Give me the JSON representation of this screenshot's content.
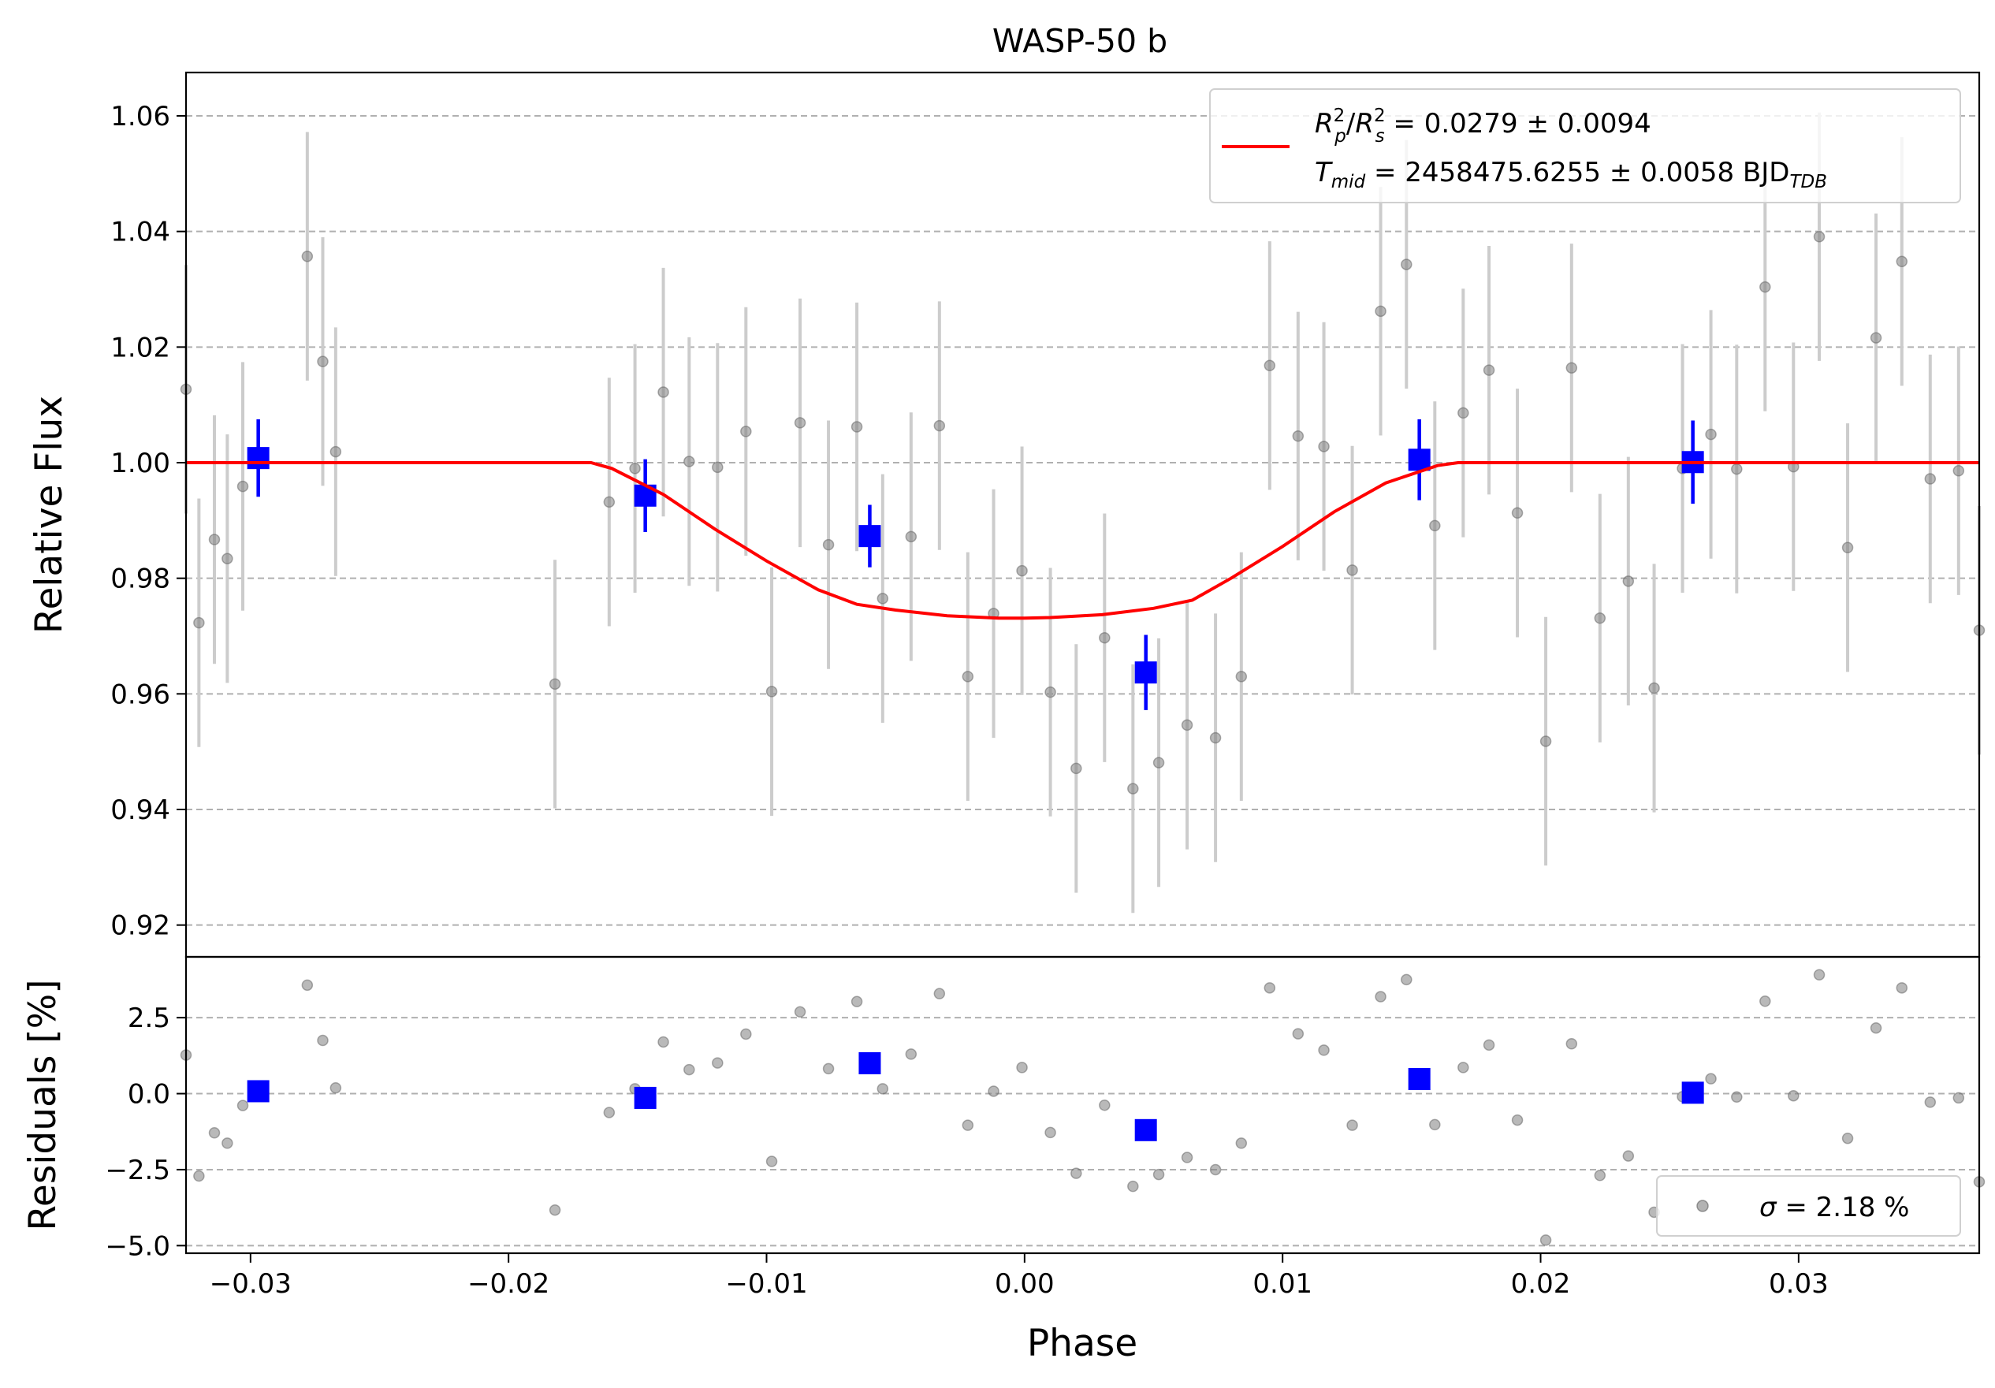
{
  "chart_data": [
    {
      "panel": "top",
      "type": "scatter",
      "title": "WASP-50 b",
      "xlabel": "",
      "ylabel": "Relative Flux",
      "xlim": [
        -0.0325,
        0.037
      ],
      "ylim": [
        0.9145,
        1.0675
      ],
      "yticks": [
        "0.92",
        "0.94",
        "0.96",
        "0.98",
        "1.00",
        "1.02",
        "1.04",
        "1.06"
      ],
      "grid": "horizontal dashed",
      "legend_position": "upper right",
      "legend": {
        "model_label": "R_p^2/R_s^2 = 0.0279 ± 0.0094",
        "model_label_parts": {
          "r": "R",
          "p": "p",
          "s": "s",
          "sq": "2",
          "div": "/",
          "value": " = 0.0279 ± 0.0094"
        },
        "tmid_parts": {
          "t": "T",
          "sub": "mid",
          "value": " = 2458475.6255 ± 0.0058 BJD",
          "tdb": "TDB"
        }
      },
      "colors": {
        "data": "#808080",
        "errorbar": "#cccccc",
        "binned": "#0000ff",
        "model": "#ff0000"
      },
      "model": {
        "name": "transit model",
        "depth_min": 0.9731,
        "x": [
          -0.0325,
          -0.0168,
          -0.016,
          -0.014,
          -0.012,
          -0.01,
          -0.008,
          -0.0065,
          -0.005,
          -0.003,
          -0.001,
          0.0,
          0.001,
          0.003,
          0.005,
          0.0065,
          0.008,
          0.01,
          0.012,
          0.014,
          0.016,
          0.0168,
          0.037
        ],
        "y": [
          1.0,
          1.0,
          0.999,
          0.9945,
          0.9885,
          0.983,
          0.978,
          0.9755,
          0.9745,
          0.9735,
          0.9731,
          0.9731,
          0.9732,
          0.9737,
          0.9748,
          0.9762,
          0.98,
          0.9855,
          0.9915,
          0.9965,
          0.9995,
          1.0,
          1.0
        ]
      },
      "data_points": [
        {
          "x": -0.0325,
          "y": 1.0127,
          "err": 0.0215
        },
        {
          "x": -0.032,
          "y": 0.9723,
          "err": 0.0215
        },
        {
          "x": -0.0314,
          "y": 0.9867,
          "err": 0.0215
        },
        {
          "x": -0.0309,
          "y": 0.9834,
          "err": 0.0215
        },
        {
          "x": -0.0303,
          "y": 0.9959,
          "err": 0.0215
        },
        {
          "x": -0.0278,
          "y": 1.0357,
          "err": 0.0215
        },
        {
          "x": -0.0272,
          "y": 1.0175,
          "err": 0.0215
        },
        {
          "x": -0.0267,
          "y": 1.0019,
          "err": 0.0215
        },
        {
          "x": -0.0182,
          "y": 0.9617,
          "err": 0.0215
        },
        {
          "x": -0.0161,
          "y": 0.9932,
          "err": 0.0215
        },
        {
          "x": -0.0151,
          "y": 0.999,
          "err": 0.0215
        },
        {
          "x": -0.014,
          "y": 1.0122,
          "err": 0.0215
        },
        {
          "x": -0.013,
          "y": 1.0002,
          "err": 0.0215
        },
        {
          "x": -0.0119,
          "y": 0.9992,
          "err": 0.0215
        },
        {
          "x": -0.0108,
          "y": 1.0054,
          "err": 0.0215
        },
        {
          "x": -0.0098,
          "y": 0.9604,
          "err": 0.0215
        },
        {
          "x": -0.0087,
          "y": 1.0069,
          "err": 0.0215
        },
        {
          "x": -0.0076,
          "y": 0.9858,
          "err": 0.0215
        },
        {
          "x": -0.0065,
          "y": 1.0062,
          "err": 0.0215
        },
        {
          "x": -0.0055,
          "y": 0.9765,
          "err": 0.0215
        },
        {
          "x": -0.0044,
          "y": 0.9872,
          "err": 0.0215
        },
        {
          "x": -0.0033,
          "y": 1.0064,
          "err": 0.0215
        },
        {
          "x": -0.0022,
          "y": 0.963,
          "err": 0.0215
        },
        {
          "x": -0.0012,
          "y": 0.9739,
          "err": 0.0215
        },
        {
          "x": -0.0001,
          "y": 0.9813,
          "err": 0.0215
        },
        {
          "x": 0.001,
          "y": 0.9603,
          "err": 0.0215
        },
        {
          "x": 0.002,
          "y": 0.9471,
          "err": 0.0215
        },
        {
          "x": 0.0031,
          "y": 0.9697,
          "err": 0.0215
        },
        {
          "x": 0.0042,
          "y": 0.9436,
          "err": 0.0215
        },
        {
          "x": 0.0052,
          "y": 0.9481,
          "err": 0.0215
        },
        {
          "x": 0.0063,
          "y": 0.9546,
          "err": 0.0215
        },
        {
          "x": 0.0074,
          "y": 0.9524,
          "err": 0.0215
        },
        {
          "x": 0.0084,
          "y": 0.963,
          "err": 0.0215
        },
        {
          "x": 0.0095,
          "y": 1.0168,
          "err": 0.0215
        },
        {
          "x": 0.0106,
          "y": 1.0046,
          "err": 0.0215
        },
        {
          "x": 0.0116,
          "y": 1.0028,
          "err": 0.0215
        },
        {
          "x": 0.0127,
          "y": 0.9814,
          "err": 0.0215
        },
        {
          "x": 0.0138,
          "y": 1.0262,
          "err": 0.0215
        },
        {
          "x": 0.0148,
          "y": 1.0343,
          "err": 0.0215
        },
        {
          "x": 0.0159,
          "y": 0.9891,
          "err": 0.0215
        },
        {
          "x": 0.017,
          "y": 1.0086,
          "err": 0.0215
        },
        {
          "x": 0.018,
          "y": 1.016,
          "err": 0.0215
        },
        {
          "x": 0.0191,
          "y": 0.9913,
          "err": 0.0215
        },
        {
          "x": 0.0202,
          "y": 0.9518,
          "err": 0.0215
        },
        {
          "x": 0.0212,
          "y": 1.0164,
          "err": 0.0215
        },
        {
          "x": 0.0223,
          "y": 0.9731,
          "err": 0.0215
        },
        {
          "x": 0.0234,
          "y": 0.9795,
          "err": 0.0215
        },
        {
          "x": 0.0244,
          "y": 0.961,
          "err": 0.0215
        },
        {
          "x": 0.0255,
          "y": 0.999,
          "err": 0.0215
        },
        {
          "x": 0.0266,
          "y": 1.0049,
          "err": 0.0215
        },
        {
          "x": 0.0276,
          "y": 0.9989,
          "err": 0.0215
        },
        {
          "x": 0.0287,
          "y": 1.0304,
          "err": 0.0215
        },
        {
          "x": 0.0298,
          "y": 0.9993,
          "err": 0.0215
        },
        {
          "x": 0.0308,
          "y": 1.0391,
          "err": 0.0215
        },
        {
          "x": 0.0319,
          "y": 0.9853,
          "err": 0.0215
        },
        {
          "x": 0.033,
          "y": 1.0216,
          "err": 0.0215
        },
        {
          "x": 0.034,
          "y": 1.0348,
          "err": 0.0215
        },
        {
          "x": 0.0351,
          "y": 0.9972,
          "err": 0.0215
        },
        {
          "x": 0.0362,
          "y": 0.9986,
          "err": 0.0215
        },
        {
          "x": 0.037,
          "y": 0.971,
          "err": 0.0215
        }
      ],
      "binned_points": [
        {
          "x": -0.0297,
          "y": 1.0008,
          "err": 0.0067
        },
        {
          "x": -0.0147,
          "y": 0.9943,
          "err": 0.0063
        },
        {
          "x": -0.006,
          "y": 0.9873,
          "err": 0.0054
        },
        {
          "x": 0.0047,
          "y": 0.9637,
          "err": 0.0065
        },
        {
          "x": 0.0153,
          "y": 1.0005,
          "err": 0.007
        },
        {
          "x": 0.0259,
          "y": 1.0001,
          "err": 0.0072
        }
      ]
    },
    {
      "panel": "bottom",
      "type": "scatter",
      "xlabel": "Phase",
      "ylabel": "Residuals [%]",
      "xlim": [
        -0.0325,
        0.037
      ],
      "ylim": [
        -5.25,
        4.5
      ],
      "xticks": [
        "−0.03",
        "−0.02",
        "−0.01",
        "0.00",
        "0.01",
        "0.02",
        "0.03"
      ],
      "xtick_values": [
        -0.03,
        -0.02,
        -0.01,
        0.0,
        0.01,
        0.02,
        0.03
      ],
      "yticks": [
        "−5.0",
        "−2.5",
        "0.0",
        "2.5"
      ],
      "ytick_values": [
        -5.0,
        -2.5,
        0.0,
        2.5
      ],
      "grid": "horizontal dashed",
      "legend_position": "lower right",
      "legend": {
        "sigma_label": "σ = 2.18 %",
        "sigma_symbol": "σ",
        "sigma_value": " = 2.18 %"
      },
      "residual_points": [
        {
          "x": -0.0325,
          "y": 1.27
        },
        {
          "x": -0.032,
          "y": -2.71
        },
        {
          "x": -0.0314,
          "y": -1.29
        },
        {
          "x": -0.0309,
          "y": -1.63
        },
        {
          "x": -0.0303,
          "y": -0.39
        },
        {
          "x": -0.0278,
          "y": 3.57
        },
        {
          "x": -0.0272,
          "y": 1.75
        },
        {
          "x": -0.0267,
          "y": 0.19
        },
        {
          "x": -0.0182,
          "y": -3.83
        },
        {
          "x": -0.0161,
          "y": -0.62
        },
        {
          "x": -0.0151,
          "y": 0.16
        },
        {
          "x": -0.014,
          "y": 1.7
        },
        {
          "x": -0.013,
          "y": 0.79
        },
        {
          "x": -0.0119,
          "y": 1.01
        },
        {
          "x": -0.0108,
          "y": 1.96
        },
        {
          "x": -0.0098,
          "y": -2.23
        },
        {
          "x": -0.0087,
          "y": 2.69
        },
        {
          "x": -0.0076,
          "y": 0.82
        },
        {
          "x": -0.0065,
          "y": 3.03
        },
        {
          "x": -0.0055,
          "y": 0.16
        },
        {
          "x": -0.0044,
          "y": 1.3
        },
        {
          "x": -0.0033,
          "y": 3.29
        },
        {
          "x": -0.0022,
          "y": -1.04
        },
        {
          "x": -0.0012,
          "y": 0.08
        },
        {
          "x": -0.0001,
          "y": 0.86
        },
        {
          "x": 0.001,
          "y": -1.28
        },
        {
          "x": 0.002,
          "y": -2.62
        },
        {
          "x": 0.0031,
          "y": -0.38
        },
        {
          "x": 0.0042,
          "y": -3.05
        },
        {
          "x": 0.0052,
          "y": -2.66
        },
        {
          "x": 0.0063,
          "y": -2.1
        },
        {
          "x": 0.0074,
          "y": -2.5
        },
        {
          "x": 0.0084,
          "y": -1.63
        },
        {
          "x": 0.0095,
          "y": 3.48
        },
        {
          "x": 0.0106,
          "y": 1.97
        },
        {
          "x": 0.0116,
          "y": 1.43
        },
        {
          "x": 0.0127,
          "y": -1.04
        },
        {
          "x": 0.0138,
          "y": 3.19
        },
        {
          "x": 0.0148,
          "y": 3.75
        },
        {
          "x": 0.0159,
          "y": -1.02
        },
        {
          "x": 0.017,
          "y": 0.86
        },
        {
          "x": 0.018,
          "y": 1.6
        },
        {
          "x": 0.0191,
          "y": -0.87
        },
        {
          "x": 0.0202,
          "y": -4.82
        },
        {
          "x": 0.0212,
          "y": 1.64
        },
        {
          "x": 0.0223,
          "y": -2.69
        },
        {
          "x": 0.0234,
          "y": -2.05
        },
        {
          "x": 0.0244,
          "y": -3.9
        },
        {
          "x": 0.0255,
          "y": -0.1
        },
        {
          "x": 0.0266,
          "y": 0.49
        },
        {
          "x": 0.0276,
          "y": -0.11
        },
        {
          "x": 0.0287,
          "y": 3.04
        },
        {
          "x": 0.0298,
          "y": -0.07
        },
        {
          "x": 0.0308,
          "y": 3.91
        },
        {
          "x": 0.0319,
          "y": -1.47
        },
        {
          "x": 0.033,
          "y": 2.16
        },
        {
          "x": 0.034,
          "y": 3.48
        },
        {
          "x": 0.0351,
          "y": -0.28
        },
        {
          "x": 0.0362,
          "y": -0.14
        },
        {
          "x": 0.037,
          "y": -2.9
        }
      ],
      "binned_residuals": [
        {
          "x": -0.0297,
          "y": 0.08
        },
        {
          "x": -0.0147,
          "y": -0.14
        },
        {
          "x": -0.006,
          "y": 1.0
        },
        {
          "x": 0.0047,
          "y": -1.2
        },
        {
          "x": 0.0153,
          "y": 0.48
        },
        {
          "x": 0.0259,
          "y": 0.03
        }
      ]
    }
  ]
}
